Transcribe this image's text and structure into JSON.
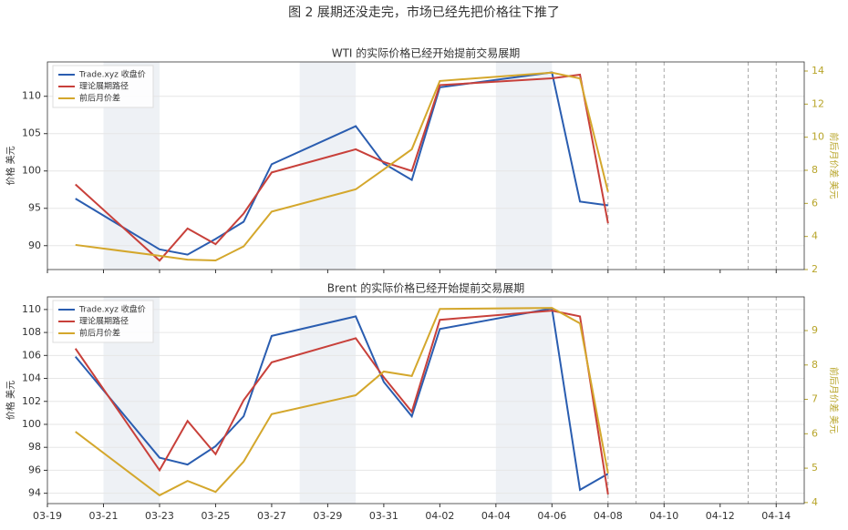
{
  "title": "图 2  展期还没走完，市场已经先把价格往下推了",
  "chart_data": [
    {
      "type": "line",
      "title": "WTI 的实际价格已经开始提前交易展期",
      "y_label": "价格 美元",
      "y2_label": "前后月价差 美元",
      "x": [
        "03-20",
        "03-23",
        "03-24",
        "03-25",
        "03-26",
        "03-27",
        "03-30",
        "03-31",
        "04-01",
        "04-02",
        "04-06",
        "04-07",
        "04-08"
      ],
      "series": [
        {
          "name": "Trade.xyz 收盘价",
          "color": "#2a5db0",
          "values": [
            96.3,
            89.5,
            88.8,
            90.9,
            93.2,
            100.9,
            106.0,
            101.0,
            98.8,
            111.2,
            113.2,
            95.9,
            95.4
          ]
        },
        {
          "name": "理论展期路径",
          "color": "#c8403a",
          "values": [
            98.2,
            88.0,
            92.3,
            90.2,
            94.3,
            99.8,
            102.9,
            101.2,
            100.0,
            111.5,
            112.4,
            112.9,
            93.0
          ]
        },
        {
          "name": "前后月价差",
          "color": "#d4a72c",
          "axis": "y2",
          "values": [
            3.49,
            2.83,
            2.6,
            2.55,
            3.4,
            5.5,
            6.85,
            8.05,
            9.27,
            13.4,
            13.9,
            13.55,
            6.7
          ]
        }
      ],
      "xlim": [
        "03-19",
        "04-15"
      ],
      "ylim": [
        86.8,
        114.6
      ],
      "yticks": [
        90,
        95,
        100,
        105,
        110
      ],
      "y2lim": [
        2,
        14.55
      ],
      "y2ticks": [
        2,
        4,
        6,
        8,
        10,
        12,
        14
      ],
      "shaded_ranges": [
        [
          "03-21",
          "03-23"
        ],
        [
          "03-28",
          "03-30"
        ],
        [
          "04-04",
          "04-06"
        ]
      ],
      "vlines": [
        "04-08",
        "04-09",
        "04-10",
        "04-13",
        "04-14"
      ],
      "grid": true,
      "legend": "upper left"
    },
    {
      "type": "line",
      "title": "Brent 的实际价格已经开始提前交易展期",
      "y_label": "价格 美元",
      "y2_label": "前后月价差 美元",
      "x": [
        "03-20",
        "03-23",
        "03-24",
        "03-25",
        "03-26",
        "03-27",
        "03-30",
        "03-31",
        "04-01",
        "04-02",
        "04-06",
        "04-07",
        "04-08"
      ],
      "series": [
        {
          "name": "Trade.xyz 收盘价",
          "color": "#2a5db0",
          "values": [
            105.9,
            97.1,
            96.5,
            98.1,
            100.7,
            107.7,
            109.4,
            103.7,
            100.7,
            108.3,
            110.1,
            94.3,
            95.7
          ]
        },
        {
          "name": "理论展期路径",
          "color": "#c8403a",
          "values": [
            106.6,
            96.0,
            100.3,
            97.4,
            102.1,
            105.4,
            107.5,
            104.1,
            101.1,
            109.1,
            109.9,
            109.4,
            93.9
          ]
        },
        {
          "name": "前后月价差",
          "color": "#d4a72c",
          "axis": "y2",
          "values": [
            6.06,
            4.21,
            4.63,
            4.31,
            5.19,
            6.57,
            7.12,
            7.81,
            7.68,
            9.63,
            9.66,
            9.21,
            4.85
          ]
        }
      ],
      "xlim": [
        "03-19",
        "04-15"
      ],
      "xticks": [
        "03-19",
        "03-21",
        "03-23",
        "03-25",
        "03-27",
        "03-29",
        "03-31",
        "04-02",
        "04-04",
        "04-06",
        "04-08",
        "04-10",
        "04-12",
        "04-14"
      ],
      "ylim": [
        93.1,
        111.1
      ],
      "yticks": [
        94,
        96,
        98,
        100,
        102,
        104,
        106,
        108,
        110
      ],
      "y2lim": [
        3.97,
        9.98
      ],
      "y2ticks": [
        4,
        5,
        6,
        7,
        8,
        9
      ],
      "shaded_ranges": [
        [
          "03-21",
          "03-23"
        ],
        [
          "03-28",
          "03-30"
        ],
        [
          "04-04",
          "04-06"
        ]
      ],
      "vlines": [
        "04-08",
        "04-09",
        "04-10",
        "04-13",
        "04-14"
      ],
      "grid": true,
      "legend": "upper left"
    }
  ]
}
